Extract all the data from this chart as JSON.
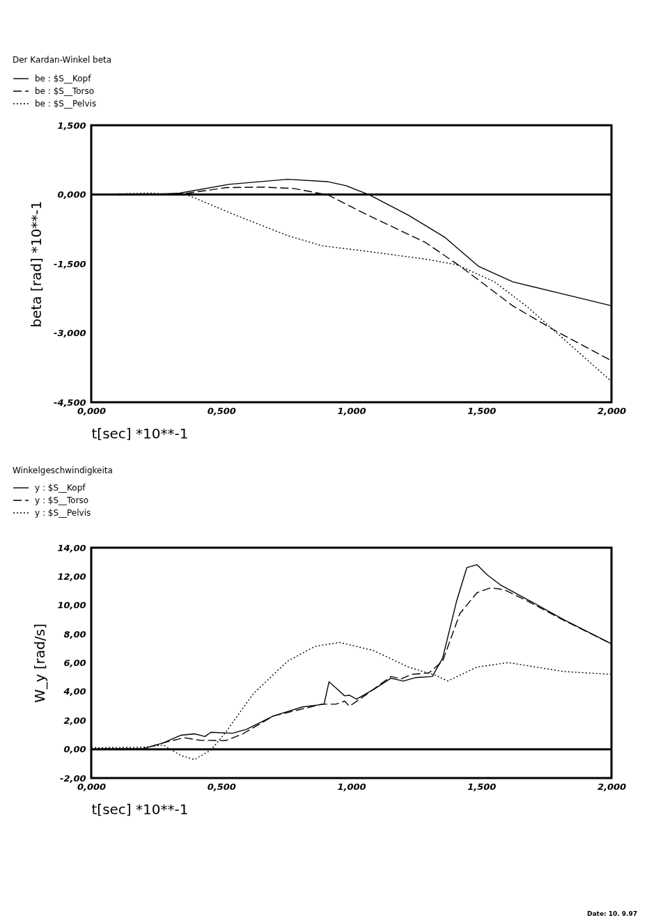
{
  "chart_data": [
    {
      "type": "line",
      "title": "Der Kardan-Winkel beta",
      "xlabel": "t[sec] *10**-1",
      "ylabel": "beta [rad] *10**-1",
      "legend": "top left",
      "grid": false,
      "xlim": [
        0,
        2
      ],
      "xticks": [
        {
          "value": 0,
          "label": "0,000"
        },
        {
          "value": 0.5,
          "label": "0,500"
        },
        {
          "value": 1,
          "label": "1,000"
        },
        {
          "value": 1.5,
          "label": "1,500"
        },
        {
          "value": 2,
          "label": "2,000"
        }
      ],
      "ylim": [
        -4.5,
        1.5
      ],
      "yticks": [
        {
          "value": -4.5,
          "label": "-4,500"
        },
        {
          "value": -3,
          "label": "-3,000"
        },
        {
          "value": -1.5,
          "label": "-1,500"
        },
        {
          "value": 0,
          "label": "0,000"
        },
        {
          "value": 1.5,
          "label": "1,500"
        }
      ],
      "ref_lines": [
        {
          "axis": "y",
          "value": 0,
          "color": "#000000"
        }
      ],
      "series": [
        {
          "name": "be : $S__Kopf",
          "color": "#000000",
          "line_style": "solid",
          "x": [
            0,
            0.2,
            0.34,
            0.53,
            0.755,
            0.907,
            0.98,
            1.07,
            1.22,
            1.36,
            1.49,
            1.62,
            1.81,
            2.0
          ],
          "values": [
            0,
            0.0,
            0.03,
            0.22,
            0.33,
            0.28,
            0.19,
            -0.01,
            -0.45,
            -0.93,
            -1.56,
            -1.89,
            -2.15,
            -2.41
          ]
        },
        {
          "name": "be : $S__Torso",
          "color": "#000000",
          "line_style": "dashed",
          "x": [
            0,
            0.2,
            0.36,
            0.52,
            0.66,
            0.78,
            0.91,
            1.05,
            1.285,
            1.42,
            1.62,
            1.79,
            2.0
          ],
          "values": [
            0,
            0.0,
            0.02,
            0.15,
            0.16,
            0.13,
            -0.01,
            -0.41,
            -1.04,
            -1.56,
            -2.41,
            -2.97,
            -3.6
          ]
        },
        {
          "name": "be : $S__Pelvis",
          "color": "#000000",
          "line_style": "dotted",
          "x": [
            0,
            0.225,
            0.37,
            0.556,
            0.755,
            0.887,
            1.046,
            1.285,
            1.405,
            1.55,
            1.68,
            1.79,
            2.0
          ],
          "values": [
            0,
            0.03,
            -0.01,
            -0.45,
            -0.89,
            -1.11,
            -1.22,
            -1.4,
            -1.52,
            -1.89,
            -2.45,
            -3.0,
            -4.05
          ]
        }
      ]
    },
    {
      "type": "line",
      "title": "Winkelgeschwindigkeita",
      "xlabel": "t[sec] *10**-1",
      "ylabel": "W_y [rad/s]",
      "legend": "top left",
      "grid": false,
      "xlim": [
        0,
        2
      ],
      "xticks": [
        {
          "value": 0,
          "label": "0,000"
        },
        {
          "value": 0.5,
          "label": "0,500"
        },
        {
          "value": 1,
          "label": "1,000"
        },
        {
          "value": 1.5,
          "label": "1,500"
        },
        {
          "value": 2,
          "label": "2,000"
        }
      ],
      "ylim": [
        -2,
        14
      ],
      "yticks": [
        {
          "value": -2,
          "label": "-2,00"
        },
        {
          "value": 0,
          "label": "0,00"
        },
        {
          "value": 2,
          "label": "2,00"
        },
        {
          "value": 4,
          "label": "4,00"
        },
        {
          "value": 6,
          "label": "6,00"
        },
        {
          "value": 8,
          "label": "8,00"
        },
        {
          "value": 10,
          "label": "10,00"
        },
        {
          "value": 12,
          "label": "12,00"
        },
        {
          "value": 14,
          "label": "14,00"
        }
      ],
      "ref_lines": [
        {
          "axis": "y",
          "value": 0,
          "color": "#000000"
        }
      ],
      "annotations": [
        "Date: 10. 9.97"
      ],
      "series": [
        {
          "name": "y : $S__Kopf",
          "color": "#000000",
          "line_style": "solid",
          "x": [
            0,
            0.2,
            0.278,
            0.344,
            0.397,
            0.42,
            0.437,
            0.46,
            0.543,
            0.596,
            0.7,
            0.81,
            0.895,
            0.914,
            0.94,
            0.974,
            0.993,
            1.02,
            1.086,
            1.152,
            1.2,
            1.245,
            1.311,
            1.351,
            1.404,
            1.444,
            1.483,
            1.523,
            1.576,
            1.682,
            1.815,
            2.0
          ],
          "values": [
            0,
            0.04,
            0.45,
            0.97,
            1.07,
            0.97,
            0.88,
            1.18,
            1.11,
            1.38,
            2.31,
            2.93,
            3.13,
            4.68,
            4.27,
            3.71,
            3.75,
            3.48,
            4.16,
            4.93,
            4.74,
            4.97,
            5.05,
            6.33,
            10.25,
            12.62,
            12.82,
            12.1,
            11.38,
            10.35,
            9.01,
            7.32
          ]
        },
        {
          "name": "y : $S__Torso",
          "color": "#000000",
          "line_style": "dashed",
          "x": [
            0,
            0.2,
            0.278,
            0.357,
            0.42,
            0.517,
            0.583,
            0.7,
            0.887,
            0.94,
            0.974,
            0.993,
            1.046,
            1.152,
            1.192,
            1.232,
            1.298,
            1.351,
            1.417,
            1.483,
            1.536,
            1.589,
            1.682,
            1.815,
            2.0
          ],
          "values": [
            0,
            0.04,
            0.45,
            0.8,
            0.62,
            0.6,
            1.07,
            2.31,
            3.13,
            3.13,
            3.34,
            2.99,
            3.65,
            5.05,
            4.89,
            5.2,
            5.3,
            6.12,
            9.42,
            10.87,
            11.22,
            11.07,
            10.25,
            8.97,
            7.32
          ]
        },
        {
          "name": "y : $S__Pelvis",
          "color": "#000000",
          "line_style": "dotted",
          "x": [
            0,
            0.2,
            0.278,
            0.344,
            0.397,
            0.46,
            0.517,
            0.623,
            0.755,
            0.861,
            0.954,
            1.086,
            1.219,
            1.325,
            1.371,
            1.483,
            1.603,
            1.815,
            2.0
          ],
          "values": [
            0.1,
            0.14,
            0.29,
            -0.43,
            -0.72,
            -0.06,
            1.18,
            3.86,
            6.12,
            7.15,
            7.42,
            6.85,
            5.71,
            5.13,
            4.74,
            5.71,
            6.02,
            5.4,
            5.2
          ]
        }
      ]
    }
  ]
}
